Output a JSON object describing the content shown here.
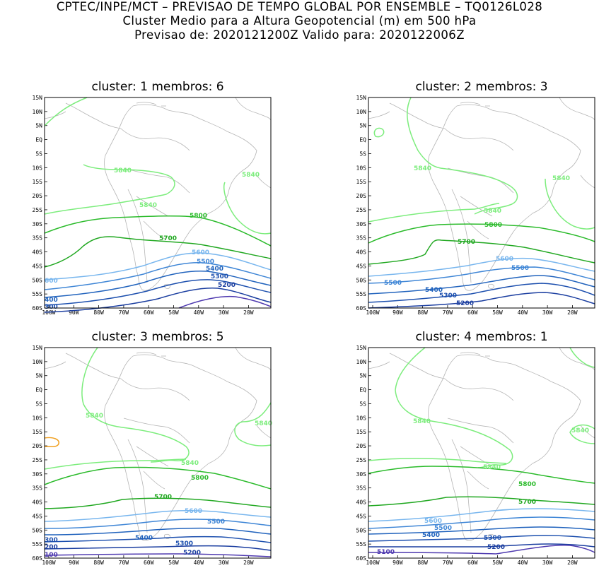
{
  "header": {
    "line1": "CPTEC/INPE/MCT – PREVISAO DE TEMPO GLOBAL POR ENSEMBLE – TQ0126L028",
    "line2": "Cluster Medio para a Altura Geopotencial (m) em 500 hPa",
    "line3": "Previsao de: 2020121200Z    Valido para: 2020122006Z"
  },
  "axes": {
    "lat_labels": [
      "15N",
      "10N",
      "5N",
      "EQ",
      "5S",
      "10S",
      "15S",
      "20S",
      "25S",
      "30S",
      "35S",
      "40S",
      "45S",
      "50S",
      "55S",
      "60S"
    ],
    "lon_labels": [
      "100W",
      "90W",
      "80W",
      "70W",
      "60W",
      "50W",
      "40W",
      "30W",
      "20W"
    ]
  },
  "colors": {
    "c5840": "#7ded7d",
    "c5800": "#2bbb2b",
    "c5700": "#21a821",
    "c5600": "#78b6ee",
    "c5500": "#3f86d6",
    "c5400": "#2163bd",
    "c5300": "#1c4fae",
    "c5200": "#1b3ea0",
    "c5100": "#4f3ab0",
    "c5900": "#f0a020",
    "coast": "#b5b5b5"
  },
  "panels": [
    {
      "title": "cluster: 1   membros: 6",
      "labels": {
        "l5840a": "5840",
        "l5840b": "5840",
        "l5840c": "5840",
        "l5800": "5800",
        "l5700": "5700",
        "l5600": "5600",
        "l5600w": "600",
        "l5500": "5500",
        "l5400": "5400",
        "l5400w": "400",
        "l5300": "5300",
        "l5300w": "300",
        "l5200": "5200"
      }
    },
    {
      "title": "cluster: 2   membros: 3",
      "labels": {
        "l5840a": "5840",
        "l5840b": "5840",
        "l5840c": "5840",
        "l5800": "5800",
        "l5700": "5700",
        "l5600": "5600",
        "l5500a": "5500",
        "l5500b": "5500",
        "l5400": "5400",
        "l5300": "5300",
        "l5200": "5200"
      }
    },
    {
      "title": "cluster: 3   membros: 5",
      "labels": {
        "l5840a": "5840",
        "l5840b": "5840",
        "l5840c": "5840",
        "l5800": "5800",
        "l5700": "5700",
        "l5600": "5600",
        "l5500": "5500",
        "l5400": "5400",
        "l5300": "5300",
        "l5300w": "300",
        "l5200": "5200",
        "l5200w": "200",
        "l5100w": "100"
      }
    },
    {
      "title": "cluster: 4   membros: 1",
      "labels": {
        "l5840a": "5840",
        "l5840b": "5840",
        "l5840c": "5840",
        "l5800": "5800",
        "l5700": "5700",
        "l5600": "5600",
        "l5500": "5500",
        "l5400": "5400",
        "l5300": "5300",
        "l5200": "5200",
        "l5100": "5100"
      }
    }
  ]
}
